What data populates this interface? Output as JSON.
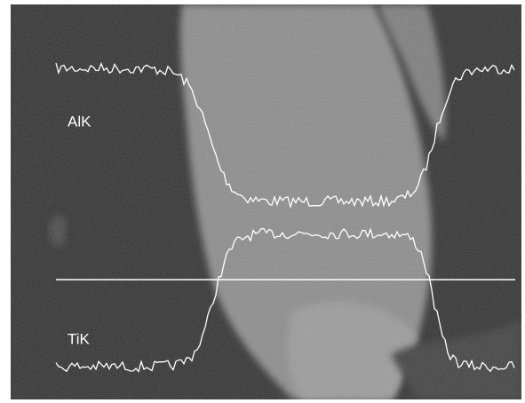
{
  "image": {
    "labels": [
      "AlK",
      "TiK"
    ]
  }
}
